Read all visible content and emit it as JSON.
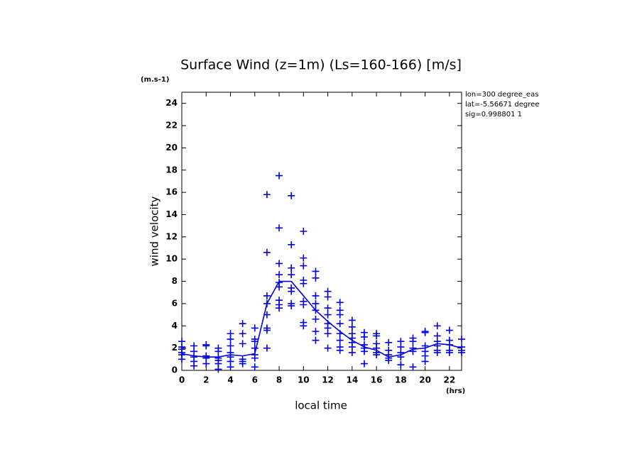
{
  "chart_data": {
    "type": "scatter",
    "title": "Surface Wind (z=1m) (Ls=160-166) [m/s]",
    "y_unit": "(m.s-1)",
    "x_unit": "(hrs)",
    "x_label": "local time",
    "y_label": "wind velocity",
    "annotations": [
      "lon=300 degree_eas",
      "lat=-5.56671 degree",
      "sig=0.998801 1"
    ],
    "xlim": [
      0,
      23
    ],
    "ylim": [
      0,
      25
    ],
    "xticks": [
      0,
      2,
      4,
      6,
      8,
      10,
      12,
      14,
      16,
      18,
      20,
      22
    ],
    "yticks": [
      0,
      2,
      4,
      6,
      8,
      10,
      12,
      14,
      16,
      18,
      20,
      22,
      24
    ],
    "series": [
      {
        "type": "scatter",
        "color": "#0000e6",
        "x": [
          0,
          0,
          0,
          0,
          0,
          0,
          1,
          1,
          1,
          1,
          1,
          2,
          2,
          2,
          2,
          2,
          3,
          3,
          3,
          3,
          3,
          3,
          4,
          4,
          4,
          4,
          4,
          4,
          4,
          5,
          5,
          5,
          5,
          5,
          5,
          6,
          6,
          6,
          6,
          6,
          6,
          6,
          7,
          7,
          7,
          7,
          7,
          7,
          7,
          7,
          8,
          8,
          8,
          8,
          8,
          8,
          8,
          8,
          8,
          9,
          9,
          9,
          9,
          9,
          9,
          9,
          9,
          10,
          10,
          10,
          10,
          10,
          10,
          10,
          10,
          10,
          11,
          11,
          11,
          11,
          11,
          11,
          11,
          11,
          12,
          12,
          12,
          12,
          12,
          12,
          12,
          12,
          13,
          13,
          13,
          13,
          13,
          13,
          13,
          13,
          14,
          14,
          14,
          14,
          14,
          14,
          14,
          15,
          15,
          15,
          15,
          15,
          15,
          16,
          16,
          16,
          16,
          16,
          16,
          17,
          17,
          17,
          17,
          17,
          18,
          18,
          18,
          18,
          18,
          19,
          19,
          19,
          19,
          19,
          20,
          20,
          20,
          20,
          20,
          20,
          21,
          21,
          21,
          21,
          21,
          21,
          22,
          22,
          22,
          22,
          22,
          23,
          23,
          23,
          23
        ],
        "values": [
          2.6,
          2.1,
          1.9,
          1.6,
          1.4,
          1.0,
          2.2,
          1.7,
          1.2,
          0.8,
          0.4,
          2.3,
          2.2,
          1.3,
          1.1,
          0.6,
          2.0,
          1.7,
          1.1,
          0.9,
          0.6,
          0.1,
          3.3,
          2.8,
          2.2,
          1.6,
          1.2,
          0.8,
          0.3,
          4.2,
          3.3,
          2.4,
          1.0,
          0.8,
          0.6,
          3.8,
          2.8,
          2.6,
          2.0,
          1.4,
          1.1,
          0.3,
          15.8,
          10.6,
          6.7,
          6.0,
          5.0,
          3.8,
          3.6,
          2.0,
          17.5,
          12.8,
          9.6,
          8.6,
          7.9,
          7.5,
          6.3,
          5.9,
          5.6,
          15.7,
          11.3,
          9.2,
          8.6,
          7.4,
          7.1,
          6.0,
          5.8,
          12.5,
          10.1,
          9.4,
          8.1,
          7.8,
          6.2,
          5.9,
          4.3,
          4.0,
          8.9,
          8.3,
          6.7,
          6.0,
          5.4,
          4.6,
          3.5,
          2.7,
          7.1,
          6.6,
          5.6,
          5.0,
          4.2,
          3.8,
          3.3,
          2.0,
          6.1,
          5.4,
          5.0,
          4.2,
          3.3,
          2.7,
          2.1,
          1.8,
          4.5,
          3.9,
          3.3,
          2.9,
          2.5,
          2.1,
          1.6,
          3.4,
          3.0,
          2.3,
          2.0,
          1.7,
          0.6,
          3.3,
          3.1,
          2.4,
          2.0,
          1.6,
          1.4,
          2.5,
          1.8,
          1.4,
          1.1,
          0.9,
          2.6,
          2.1,
          1.6,
          1.2,
          0.5,
          2.9,
          2.6,
          2.0,
          1.7,
          0.3,
          3.5,
          3.4,
          2.2,
          1.7,
          1.3,
          0.8,
          4.0,
          3.1,
          2.6,
          2.2,
          1.8,
          1.6,
          3.6,
          2.7,
          2.3,
          1.8,
          1.6,
          2.8,
          2.1,
          1.8,
          1.6
        ]
      },
      {
        "type": "line",
        "color": "#0000e6",
        "x": [
          0,
          1,
          2,
          3,
          4,
          5,
          6,
          7,
          8,
          9,
          10,
          11,
          12,
          13,
          14,
          15,
          16,
          17,
          18,
          19,
          20,
          21,
          22,
          23
        ],
        "values": [
          1.5,
          1.3,
          1.2,
          1.2,
          1.4,
          1.3,
          1.5,
          6.0,
          8.0,
          8.0,
          6.7,
          5.4,
          4.4,
          3.5,
          2.7,
          2.1,
          1.8,
          1.2,
          1.4,
          1.9,
          2.0,
          2.4,
          2.3,
          2.0
        ]
      }
    ]
  }
}
